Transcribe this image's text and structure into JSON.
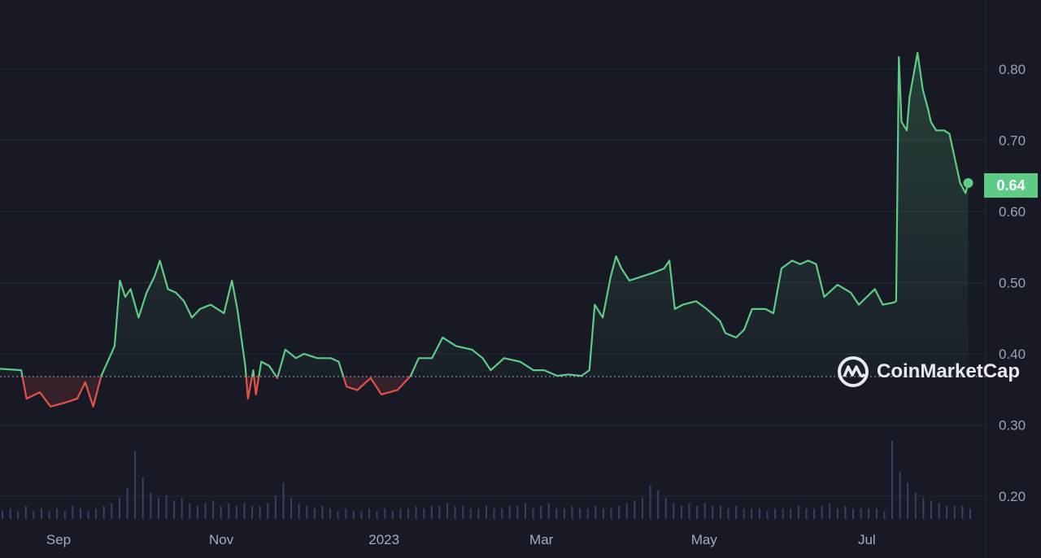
{
  "chart_data": {
    "type": "line",
    "title": "",
    "xlabel": "",
    "ylabel": "",
    "x_tick_labels": [
      "Sep",
      "Nov",
      "2023",
      "Mar",
      "May",
      "Jul"
    ],
    "x_tick_dates": [
      "2022-09-01",
      "2022-11-01",
      "2023-01-01",
      "2023-03-01",
      "2023-05-01",
      "2023-07-01"
    ],
    "y_ticks": [
      "0.20",
      "0.30",
      "0.40",
      "0.50",
      "0.60",
      "0.70",
      "0.80"
    ],
    "ylim": [
      0.18,
      0.88
    ],
    "grid": true,
    "reference_price": 0.368,
    "current_price_label": "0.64",
    "colors": {
      "above": "#5ecb87",
      "below": "#e4514b",
      "background": "#171924",
      "volume": "#3a3f66",
      "grid": "#262a36"
    },
    "watermark": "CoinMarketCap",
    "series": [
      {
        "x": [
          "2022-08-10",
          "2022-08-18",
          "2022-08-20",
          "2022-08-25",
          "2022-08-29",
          "2022-09-03",
          "2022-09-08",
          "2022-09-11",
          "2022-09-14",
          "2022-09-17",
          "2022-09-20",
          "2022-09-22",
          "2022-09-24",
          "2022-09-26",
          "2022-09-28",
          "2022-10-01",
          "2022-10-04",
          "2022-10-07",
          "2022-10-09",
          "2022-10-12",
          "2022-10-15",
          "2022-10-18",
          "2022-10-21",
          "2022-10-24",
          "2022-10-28",
          "2022-11-02",
          "2022-11-05",
          "2022-11-07",
          "2022-11-10",
          "2022-11-11",
          "2022-11-13",
          "2022-11-14",
          "2022-11-16",
          "2022-11-19",
          "2022-11-22",
          "2022-11-25",
          "2022-11-29",
          "2022-12-02",
          "2022-12-07",
          "2022-12-12",
          "2022-12-15",
          "2022-12-18",
          "2022-12-22",
          "2022-12-27",
          "2022-12-31",
          "2023-01-06",
          "2023-01-11",
          "2023-01-14",
          "2023-01-19",
          "2023-01-23",
          "2023-01-28",
          "2023-02-03",
          "2023-02-07",
          "2023-02-10",
          "2023-02-15",
          "2023-02-21",
          "2023-02-26",
          "2023-03-02",
          "2023-03-07",
          "2023-03-11",
          "2023-03-16",
          "2023-03-19",
          "2023-03-21",
          "2023-03-24",
          "2023-03-27",
          "2023-03-29",
          "2023-03-31",
          "2023-04-03",
          "2023-04-08",
          "2023-04-12",
          "2023-04-16",
          "2023-04-18",
          "2023-04-20",
          "2023-04-23",
          "2023-04-28",
          "2023-05-02",
          "2023-05-07",
          "2023-05-09",
          "2023-05-13",
          "2023-05-16",
          "2023-05-19",
          "2023-05-24",
          "2023-05-27",
          "2023-05-30",
          "2023-06-03",
          "2023-06-06",
          "2023-06-09",
          "2023-06-12",
          "2023-06-15",
          "2023-06-20",
          "2023-06-25",
          "2023-06-28",
          "2023-07-01",
          "2023-07-04",
          "2023-07-07",
          "2023-07-11",
          "2023-07-12",
          "2023-07-13",
          "2023-07-14",
          "2023-07-16",
          "2023-07-17",
          "2023-07-20",
          "2023-07-22",
          "2023-07-24",
          "2023-07-25",
          "2023-07-27",
          "2023-07-30",
          "2023-08-01",
          "2023-08-03",
          "2023-08-05",
          "2023-08-07",
          "2023-08-08"
        ],
        "y": [
          0.379,
          0.377,
          0.337,
          0.346,
          0.326,
          0.331,
          0.337,
          0.36,
          0.326,
          0.369,
          0.394,
          0.411,
          0.503,
          0.48,
          0.491,
          0.451,
          0.486,
          0.509,
          0.531,
          0.491,
          0.486,
          0.474,
          0.451,
          0.463,
          0.469,
          0.457,
          0.503,
          0.463,
          0.383,
          0.337,
          0.377,
          0.343,
          0.389,
          0.383,
          0.366,
          0.406,
          0.394,
          0.4,
          0.394,
          0.394,
          0.389,
          0.354,
          0.349,
          0.366,
          0.343,
          0.349,
          0.369,
          0.394,
          0.394,
          0.423,
          0.411,
          0.406,
          0.394,
          0.377,
          0.394,
          0.389,
          0.377,
          0.377,
          0.369,
          0.371,
          0.369,
          0.377,
          0.469,
          0.451,
          0.509,
          0.537,
          0.52,
          0.503,
          0.509,
          0.514,
          0.52,
          0.531,
          0.463,
          0.469,
          0.474,
          0.463,
          0.446,
          0.429,
          0.423,
          0.434,
          0.463,
          0.463,
          0.457,
          0.52,
          0.531,
          0.526,
          0.531,
          0.526,
          0.48,
          0.497,
          0.486,
          0.469,
          0.48,
          0.491,
          0.469,
          0.472,
          0.474,
          0.817,
          0.726,
          0.714,
          0.76,
          0.823,
          0.771,
          0.743,
          0.726,
          0.714,
          0.714,
          0.709,
          0.674,
          0.64,
          0.626,
          0.64
        ]
      }
    ],
    "volume": [
      3,
      4,
      3,
      5,
      3,
      4,
      3,
      4,
      3,
      5,
      4,
      3,
      4,
      5,
      6,
      8,
      12,
      26,
      16,
      10,
      8,
      9,
      7,
      8,
      6,
      5,
      6,
      7,
      5,
      6,
      5,
      6,
      5,
      5,
      6,
      9,
      14,
      8,
      6,
      5,
      4,
      5,
      4,
      3,
      4,
      3,
      3,
      4,
      3,
      4,
      3,
      4,
      4,
      5,
      4,
      5,
      5,
      6,
      5,
      5,
      4,
      4,
      5,
      4,
      4,
      5,
      5,
      6,
      4,
      5,
      6,
      4,
      4,
      5,
      4,
      4,
      5,
      4,
      4,
      5,
      6,
      7,
      8,
      13,
      11,
      8,
      6,
      5,
      6,
      5,
      6,
      5,
      5,
      4,
      5,
      4,
      4,
      4,
      3,
      4,
      4,
      4,
      5,
      4,
      4,
      5,
      6,
      4,
      5,
      4,
      4,
      4,
      4,
      3,
      30,
      18,
      14,
      10,
      8,
      7,
      6,
      5,
      5,
      5,
      4
    ]
  }
}
